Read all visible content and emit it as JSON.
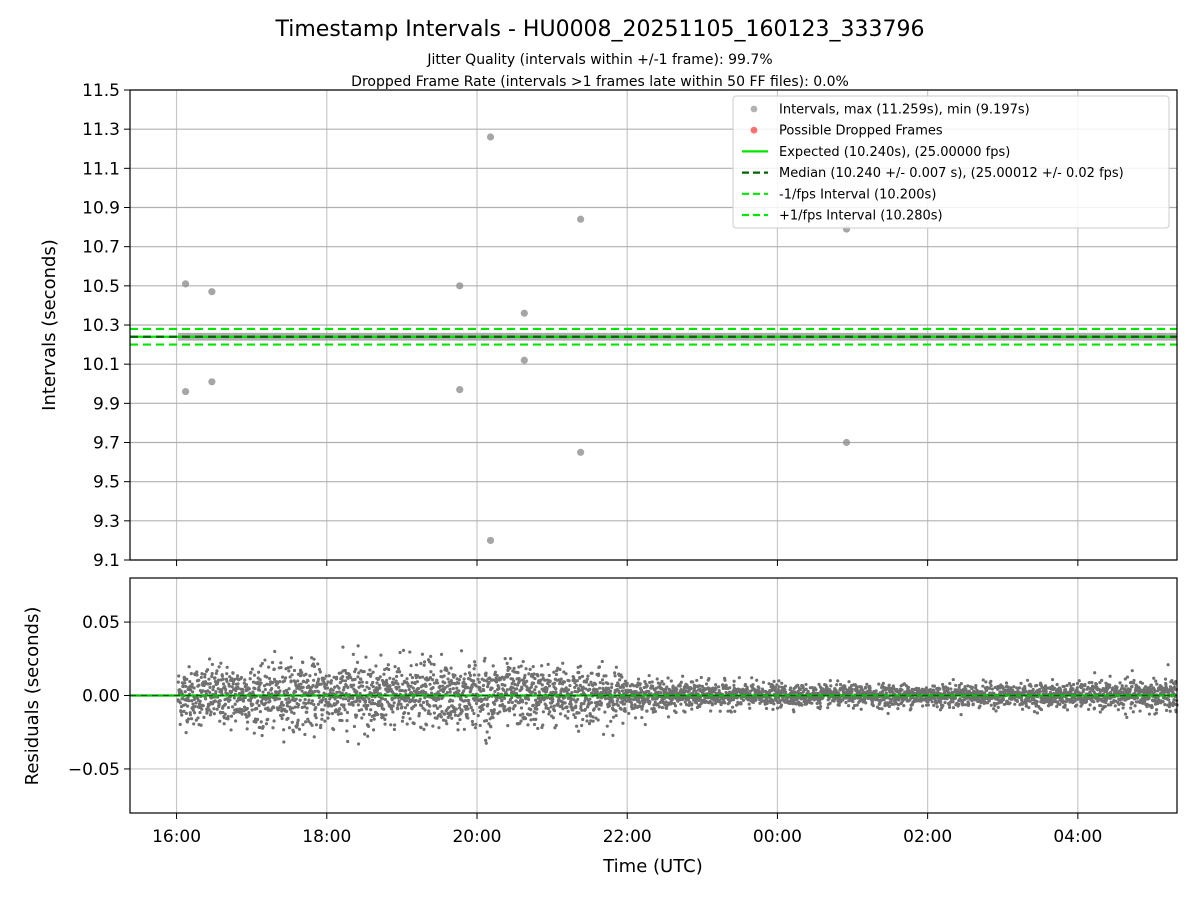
{
  "chart_data": [
    {
      "type": "scatter",
      "title": "Timestamp Intervals - HU0008_20251105_160123_333796",
      "subtitle_lines": [
        "Jitter Quality (intervals within +/-1 frame): 99.7%",
        "Dropped Frame Rate (intervals >1 frames late within 50 FF files): 0.0%"
      ],
      "xlabel": "",
      "ylabel": "Intervals (seconds)",
      "xlim_hours": [
        15.38,
        29.32
      ],
      "ylim": [
        9.1,
        11.5
      ],
      "yticks": [
        9.1,
        9.3,
        9.5,
        9.7,
        9.9,
        10.1,
        10.3,
        10.5,
        10.7,
        10.9,
        11.1,
        11.3,
        11.5
      ],
      "ytick_labels": [
        "9.1",
        "9.3",
        "9.5",
        "9.7",
        "9.9",
        "10.1",
        "10.3",
        "10.5",
        "10.7",
        "10.9",
        "11.1",
        "11.3",
        "11.5"
      ],
      "grid": true,
      "legend_position": "top-right",
      "legend": [
        {
          "label": "Intervals, max (11.259s), min (9.197s)",
          "kind": "marker",
          "color": "#808080"
        },
        {
          "label": "Possible Dropped Frames",
          "kind": "marker",
          "color": "#ff0000"
        },
        {
          "label": "Expected (10.240s), (25.00000 fps)",
          "kind": "solid",
          "color": "#00e600"
        },
        {
          "label": "Median (10.240 +/- 0.007 s), (25.00012 +/- 0.02 fps)",
          "kind": "dashed",
          "color": "#006400"
        },
        {
          "label": "-1/fps Interval (10.200s)",
          "kind": "dashed",
          "color": "#00e600"
        },
        {
          "label": "+1/fps Interval (10.280s)",
          "kind": "dashed",
          "color": "#00e600"
        }
      ],
      "reference_lines": {
        "expected": 10.24,
        "median": 10.24,
        "minus_one_fps": 10.2,
        "plus_one_fps": 10.28
      },
      "band": {
        "center": 10.24,
        "halfwidth": 0.02,
        "x_start_hour": 16.02
      },
      "outliers": [
        {
          "x": 16.12,
          "y": 10.51
        },
        {
          "x": 16.12,
          "y": 9.96
        },
        {
          "x": 16.47,
          "y": 10.47
        },
        {
          "x": 16.47,
          "y": 10.01
        },
        {
          "x": 19.77,
          "y": 10.5
        },
        {
          "x": 19.77,
          "y": 9.97
        },
        {
          "x": 20.18,
          "y": 11.26
        },
        {
          "x": 20.18,
          "y": 9.2
        },
        {
          "x": 20.63,
          "y": 10.36
        },
        {
          "x": 20.63,
          "y": 10.12
        },
        {
          "x": 21.38,
          "y": 10.84
        },
        {
          "x": 21.38,
          "y": 9.65
        },
        {
          "x": 24.92,
          "y": 10.79
        },
        {
          "x": 24.92,
          "y": 9.7
        }
      ],
      "dropped_frames": []
    },
    {
      "type": "scatter",
      "xlabel": "Time (UTC)",
      "ylabel": "Residuals (seconds)",
      "xlim_hours": [
        15.38,
        29.32
      ],
      "ylim": [
        -0.08,
        0.08
      ],
      "yticks": [
        0.05,
        0.0,
        -0.05
      ],
      "ytick_labels": [
        "0.05",
        "0.00",
        "−0.05"
      ],
      "xticks_hours": [
        16,
        18,
        20,
        22,
        24,
        26,
        28
      ],
      "xtick_labels": [
        "16:00",
        "18:00",
        "20:00",
        "22:00",
        "00:00",
        "02:00",
        "04:00"
      ],
      "grid": true,
      "zero_line_color": "#00c000",
      "point_color": "#707070",
      "residual_series": {
        "x_start_hour": 16.02,
        "x_end_hour": 29.32,
        "count": 4600,
        "amplitude_profile": [
          {
            "hour": 16.0,
            "sigma": 0.0095
          },
          {
            "hour": 17.5,
            "sigma": 0.011
          },
          {
            "hour": 20.2,
            "sigma": 0.011
          },
          {
            "hour": 21.9,
            "sigma": 0.0085
          },
          {
            "hour": 22.0,
            "sigma": 0.0055
          },
          {
            "hour": 23.0,
            "sigma": 0.0045
          },
          {
            "hour": 24.5,
            "sigma": 0.0035
          },
          {
            "hour": 26.0,
            "sigma": 0.0038
          },
          {
            "hour": 28.0,
            "sigma": 0.004
          },
          {
            "hour": 29.3,
            "sigma": 0.006
          }
        ],
        "clip": [
          -0.036,
          0.036
        ]
      }
    }
  ]
}
